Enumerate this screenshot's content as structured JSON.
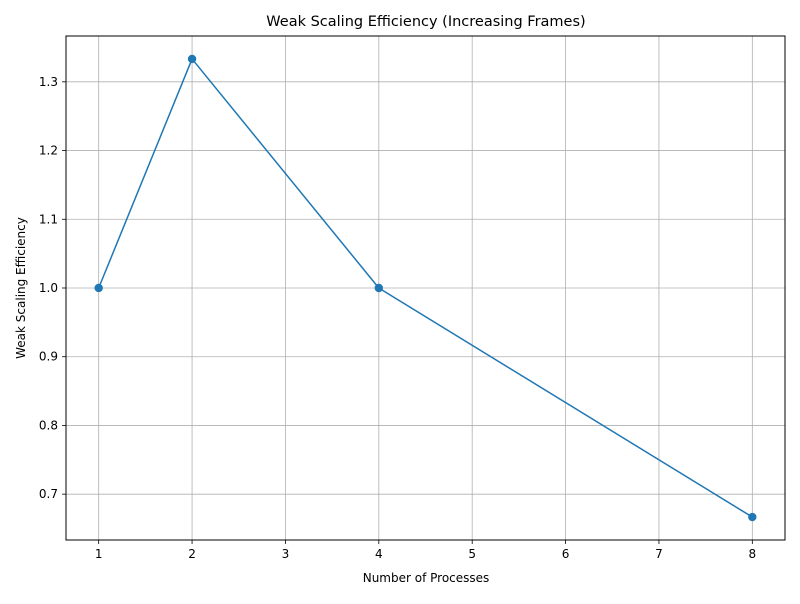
{
  "chart_data": {
    "type": "line",
    "title": "Weak Scaling Efficiency (Increasing Frames)",
    "xlabel": "Number of Processes",
    "ylabel": "Weak Scaling Efficiency",
    "xlim": [
      0.65,
      8.35
    ],
    "ylim": [
      0.6333,
      1.3667
    ],
    "xticks": [
      1,
      2,
      3,
      4,
      5,
      6,
      7,
      8
    ],
    "xtick_labels": [
      "1",
      "2",
      "3",
      "4",
      "5",
      "6",
      "7",
      "8"
    ],
    "yticks": [
      0.7,
      0.8,
      0.9,
      1.0,
      1.1,
      1.2,
      1.3
    ],
    "ytick_labels": [
      "0.7",
      "0.8",
      "0.9",
      "1.0",
      "1.1",
      "1.2",
      "1.3"
    ],
    "grid": true,
    "series": [
      {
        "x": [
          1,
          2,
          4,
          8
        ],
        "values": [
          1.0,
          1.3333,
          1.0,
          0.6667
        ],
        "color": "#1f77b4",
        "marker": "circle"
      }
    ]
  }
}
